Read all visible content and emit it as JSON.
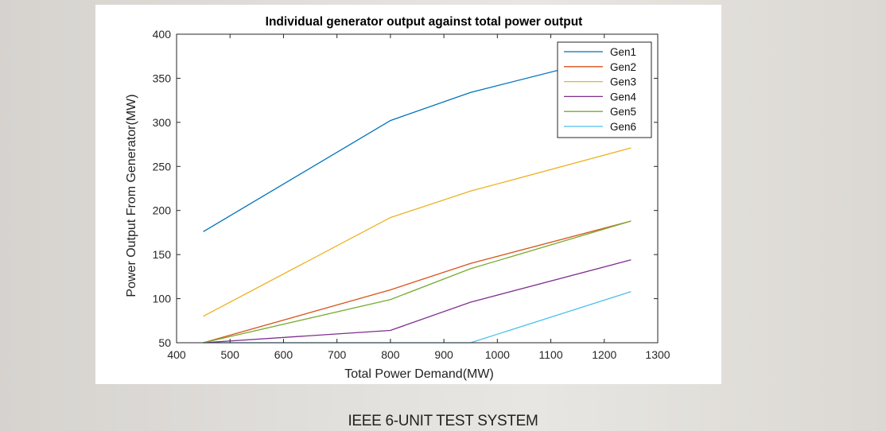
{
  "caption": "IEEE 6-UNIT TEST SYSTEM",
  "chart_data": {
    "type": "line",
    "title": "Individual generator output against total power output",
    "xlabel": "Total Power Demand(MW)",
    "ylabel": "Power Output From Generator(MW)",
    "xlim": [
      400,
      1300
    ],
    "ylim": [
      50,
      400
    ],
    "xticks": [
      400,
      500,
      600,
      700,
      800,
      900,
      1000,
      1100,
      1200,
      1300
    ],
    "yticks": [
      50,
      100,
      150,
      200,
      250,
      300,
      350,
      400
    ],
    "grid": false,
    "legend_position": "top-right",
    "x": [
      450,
      800,
      950,
      1250
    ],
    "series": [
      {
        "name": "Gen1",
        "color": "#0072bd",
        "values": [
          176,
          302,
          334,
          380
        ]
      },
      {
        "name": "Gen2",
        "color": "#d95319",
        "values": [
          50,
          110,
          140,
          188
        ]
      },
      {
        "name": "Gen3",
        "color": "#edb120",
        "values": [
          80,
          192,
          222,
          271
        ]
      },
      {
        "name": "Gen4",
        "color": "#7e2f8e",
        "values": [
          50,
          64,
          96,
          144
        ]
      },
      {
        "name": "Gen5",
        "color": "#77ac30",
        "values": [
          50,
          99,
          134,
          188
        ]
      },
      {
        "name": "Gen6",
        "color": "#4dbeee",
        "values": [
          50,
          50,
          50,
          108
        ]
      }
    ]
  }
}
